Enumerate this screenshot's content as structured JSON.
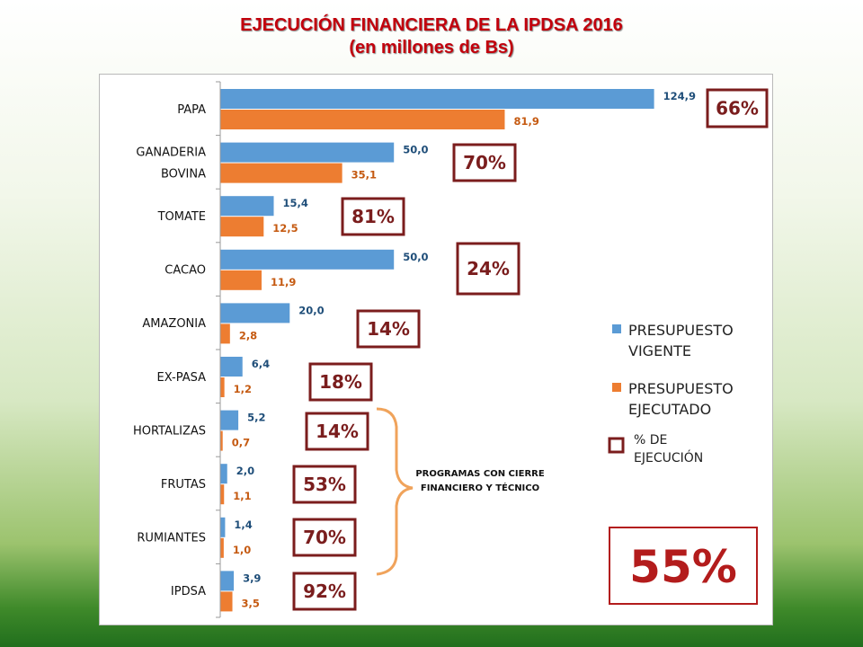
{
  "title": "EJECUCIÓN FINANCIERA DE LA IPDSA 2016",
  "subtitle": "(en millones de Bs)",
  "colors": {
    "vigente": "#5b9bd5",
    "ejecutado": "#ed7d31",
    "box": "#7b1d1d",
    "label_vigente": "#1f4e79",
    "label_ejecutado": "#c55a11"
  },
  "legend": {
    "vigente": [
      "PRESUPUESTO",
      "VIGENTE"
    ],
    "ejecutado": [
      "PRESUPUESTO",
      "EJECUTADO"
    ],
    "pct": [
      "% DE",
      "EJECUCIÓN"
    ]
  },
  "annotation": [
    "PROGRAMAS CON CIERRE",
    "FINANCIERO Y TÉCNICO"
  ],
  "total_pct": "55%",
  "chart_data": {
    "type": "bar",
    "orientation": "horizontal",
    "categories": [
      [
        "PAPA"
      ],
      [
        "GANADERIA",
        "BOVINA"
      ],
      [
        "TOMATE"
      ],
      [
        "CACAO"
      ],
      [
        "AMAZONIA"
      ],
      [
        "EX-PASA"
      ],
      [
        "HORTALIZAS"
      ],
      [
        "FRUTAS"
      ],
      [
        "RUMIANTES"
      ],
      [
        "IPDSA"
      ]
    ],
    "series": [
      {
        "name": "PRESUPUESTO VIGENTE",
        "values": [
          124.9,
          50.0,
          15.4,
          50.0,
          20.0,
          6.4,
          5.2,
          2.0,
          1.4,
          3.9
        ],
        "labels": [
          "124,9",
          "50,0",
          "15,4",
          "50,0",
          "20,0",
          "6,4",
          "5,2",
          "2,0",
          "1,4",
          "3,9"
        ]
      },
      {
        "name": "PRESUPUESTO EJECUTADO",
        "values": [
          81.9,
          35.1,
          12.5,
          11.9,
          2.8,
          1.2,
          0.7,
          1.1,
          1.0,
          3.5
        ],
        "labels": [
          "81,9",
          "35,1",
          "12,5",
          "11,9",
          "2,8",
          "1,2",
          "0,7",
          "1,1",
          "1,0",
          "3,5"
        ]
      }
    ],
    "execution_pct": [
      "66%",
      "70%",
      "81%",
      "24%",
      "14%",
      "18%",
      "14%",
      "53%",
      "70%",
      "92%"
    ],
    "xlim": [
      0,
      125
    ],
    "legend_position": "right"
  }
}
